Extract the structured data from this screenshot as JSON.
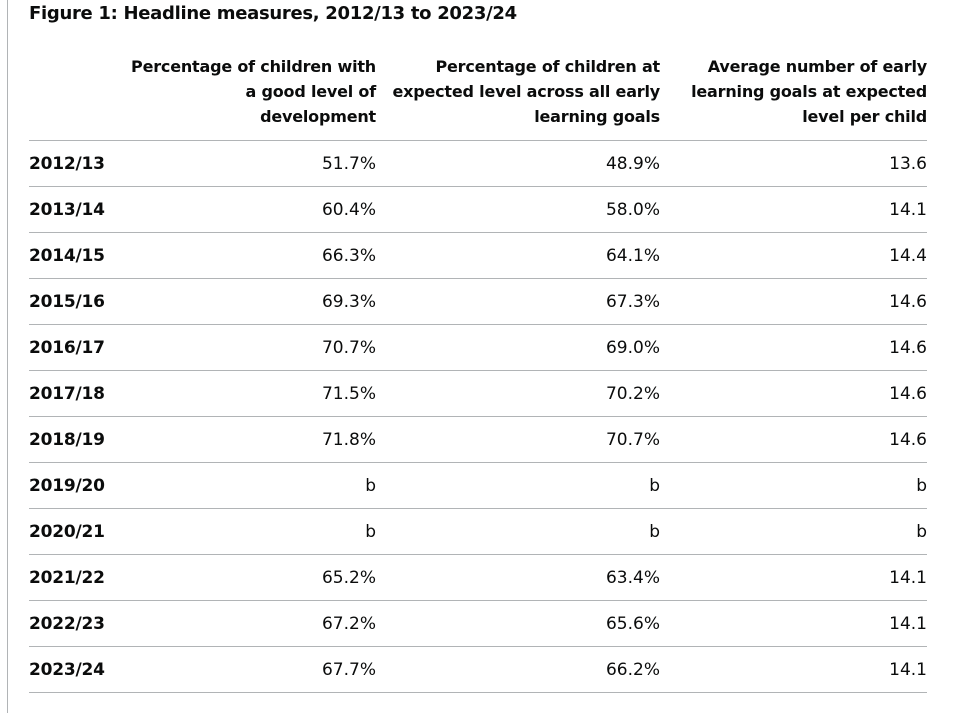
{
  "figure": {
    "caption": "Figure 1: Headline measures, 2012/13 to 2023/24"
  },
  "table": {
    "headers": [
      "",
      [
        "Percentage of children with",
        "a good level of",
        "development"
      ],
      [
        "Percentage of children at",
        "expected level across all early",
        "learning goals"
      ],
      [
        "Average number of early",
        "learning goals at expected",
        "level per child"
      ]
    ],
    "rows": [
      {
        "year": "2012/13",
        "good_level": "51.7%",
        "all_goals": "48.9%",
        "avg_goals": "13.6"
      },
      {
        "year": "2013/14",
        "good_level": "60.4%",
        "all_goals": "58.0%",
        "avg_goals": "14.1"
      },
      {
        "year": "2014/15",
        "good_level": "66.3%",
        "all_goals": "64.1%",
        "avg_goals": "14.4"
      },
      {
        "year": "2015/16",
        "good_level": "69.3%",
        "all_goals": "67.3%",
        "avg_goals": "14.6"
      },
      {
        "year": "2016/17",
        "good_level": "70.7%",
        "all_goals": "69.0%",
        "avg_goals": "14.6"
      },
      {
        "year": "2017/18",
        "good_level": "71.5%",
        "all_goals": "70.2%",
        "avg_goals": "14.6"
      },
      {
        "year": "2018/19",
        "good_level": "71.8%",
        "all_goals": "70.7%",
        "avg_goals": "14.6"
      },
      {
        "year": "2019/20",
        "good_level": "b",
        "all_goals": "b",
        "avg_goals": "b"
      },
      {
        "year": "2020/21",
        "good_level": "b",
        "all_goals": "b",
        "avg_goals": "b"
      },
      {
        "year": "2021/22",
        "good_level": "65.2%",
        "all_goals": "63.4%",
        "avg_goals": "14.1"
      },
      {
        "year": "2022/23",
        "good_level": "67.2%",
        "all_goals": "65.6%",
        "avg_goals": "14.1"
      },
      {
        "year": "2023/24",
        "good_level": "67.7%",
        "all_goals": "66.2%",
        "avg_goals": "14.1"
      }
    ]
  },
  "colors": {
    "text": "#0b0c0c",
    "rule": "#b1b4b6",
    "background": "#ffffff"
  }
}
